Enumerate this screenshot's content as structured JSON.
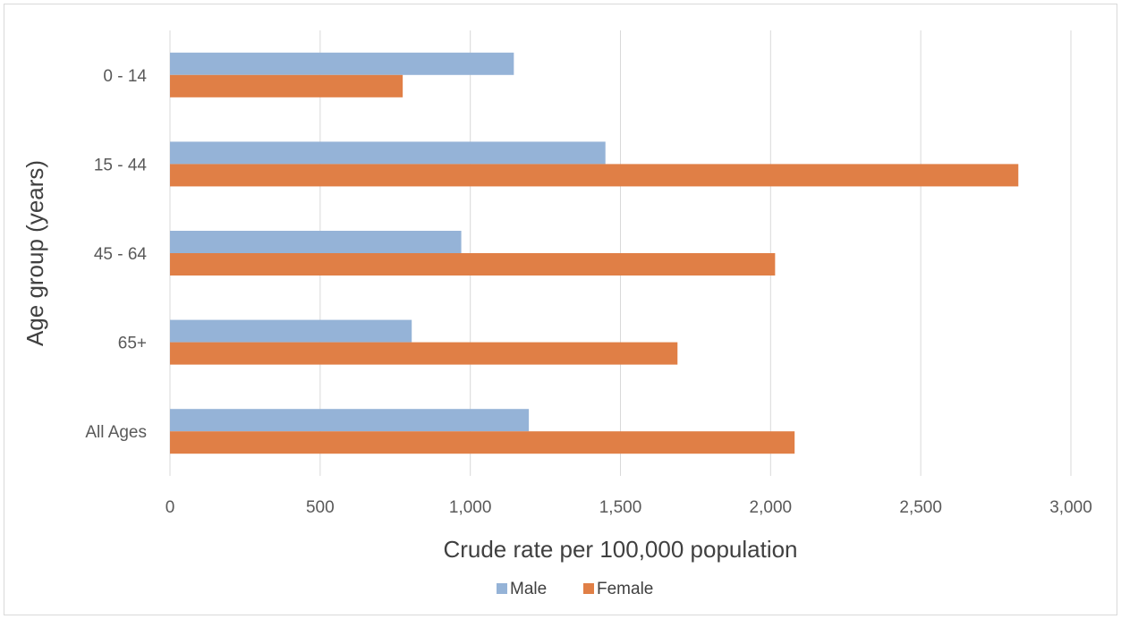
{
  "chart_data": {
    "type": "bar",
    "orientation": "horizontal",
    "categories": [
      "0 - 14",
      "15 - 44",
      "45 - 64",
      "65+",
      "All Ages"
    ],
    "series": [
      {
        "name": "Male",
        "color": "#95B3D7",
        "values": [
          1145,
          1450,
          970,
          805,
          1195
        ]
      },
      {
        "name": "Female",
        "color": "#E07F46",
        "values": [
          775,
          2825,
          2015,
          1690,
          2080
        ]
      }
    ],
    "xlabel": "Crude rate per 100,000 population",
    "ylabel": "Age group (years)",
    "xlim": [
      0,
      3000
    ],
    "xticks": [
      0,
      500,
      1000,
      1500,
      2000,
      2500,
      3000
    ],
    "xtick_labels": [
      "0",
      "500",
      "1,000",
      "1,500",
      "2,000",
      "2,500",
      "3,000"
    ],
    "grid": true,
    "legend_position": "bottom"
  }
}
